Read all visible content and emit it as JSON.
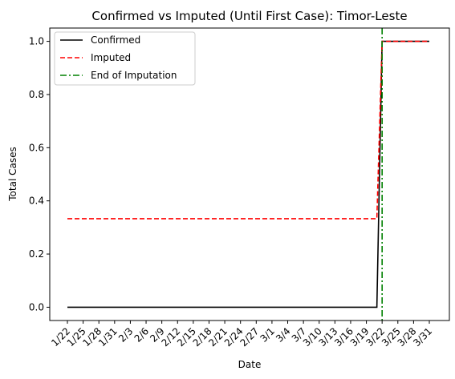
{
  "chart_data": {
    "type": "line",
    "title": "Confirmed vs Imputed (Until First Case): Timor-Leste",
    "xlabel": "Date",
    "ylabel": "Total Cases",
    "x": [
      "1/22",
      "1/23",
      "1/24",
      "1/25",
      "1/26",
      "1/27",
      "1/28",
      "1/29",
      "1/30",
      "1/31",
      "2/1",
      "2/2",
      "2/3",
      "2/4",
      "2/5",
      "2/6",
      "2/7",
      "2/8",
      "2/9",
      "2/10",
      "2/11",
      "2/12",
      "2/13",
      "2/14",
      "2/15",
      "2/16",
      "2/17",
      "2/18",
      "2/19",
      "2/20",
      "2/21",
      "2/22",
      "2/23",
      "2/24",
      "2/25",
      "2/26",
      "2/27",
      "2/28",
      "2/29",
      "3/1",
      "3/2",
      "3/3",
      "3/4",
      "3/5",
      "3/6",
      "3/7",
      "3/8",
      "3/9",
      "3/10",
      "3/11",
      "3/12",
      "3/13",
      "3/14",
      "3/15",
      "3/16",
      "3/17",
      "3/18",
      "3/19",
      "3/20",
      "3/21",
      "3/22",
      "3/23",
      "3/24",
      "3/25",
      "3/26",
      "3/27",
      "3/28",
      "3/29",
      "3/30",
      "3/31"
    ],
    "x_ticks": [
      "1/22",
      "1/25",
      "1/28",
      "1/31",
      "2/3",
      "2/6",
      "2/9",
      "2/12",
      "2/15",
      "2/18",
      "2/21",
      "2/24",
      "2/27",
      "3/1",
      "3/4",
      "3/7",
      "3/10",
      "3/13",
      "3/16",
      "3/19",
      "3/22",
      "3/25",
      "3/28",
      "3/31"
    ],
    "y_ticks": [
      "0.0",
      "0.2",
      "0.4",
      "0.6",
      "0.8",
      "1.0"
    ],
    "ylim": [
      -0.05,
      1.05
    ],
    "grid": false,
    "legend_position": "top-left",
    "series": [
      {
        "name": "Confirmed",
        "color": "#000000",
        "style": "solid",
        "values": [
          0,
          0,
          0,
          0,
          0,
          0,
          0,
          0,
          0,
          0,
          0,
          0,
          0,
          0,
          0,
          0,
          0,
          0,
          0,
          0,
          0,
          0,
          0,
          0,
          0,
          0,
          0,
          0,
          0,
          0,
          0,
          0,
          0,
          0,
          0,
          0,
          0,
          0,
          0,
          0,
          0,
          0,
          0,
          0,
          0,
          0,
          0,
          0,
          0,
          0,
          0,
          0,
          0,
          0,
          0,
          0,
          0,
          0,
          0,
          0,
          1,
          1,
          1,
          1,
          1,
          1,
          1,
          1,
          1,
          1
        ]
      },
      {
        "name": "Imputed",
        "color": "#ff0000",
        "style": "dashed",
        "values": [
          0.333,
          0.333,
          0.333,
          0.333,
          0.333,
          0.333,
          0.333,
          0.333,
          0.333,
          0.333,
          0.333,
          0.333,
          0.333,
          0.333,
          0.333,
          0.333,
          0.333,
          0.333,
          0.333,
          0.333,
          0.333,
          0.333,
          0.333,
          0.333,
          0.333,
          0.333,
          0.333,
          0.333,
          0.333,
          0.333,
          0.333,
          0.333,
          0.333,
          0.333,
          0.333,
          0.333,
          0.333,
          0.333,
          0.333,
          0.333,
          0.333,
          0.333,
          0.333,
          0.333,
          0.333,
          0.333,
          0.333,
          0.333,
          0.333,
          0.333,
          0.333,
          0.333,
          0.333,
          0.333,
          0.333,
          0.333,
          0.333,
          0.333,
          0.333,
          0.333,
          1,
          1,
          1,
          1,
          1,
          1,
          1,
          1,
          1,
          1
        ]
      }
    ],
    "vlines": [
      {
        "name": "End of Imputation",
        "color": "#008000",
        "style": "dashdot",
        "x": "3/22"
      }
    ]
  }
}
